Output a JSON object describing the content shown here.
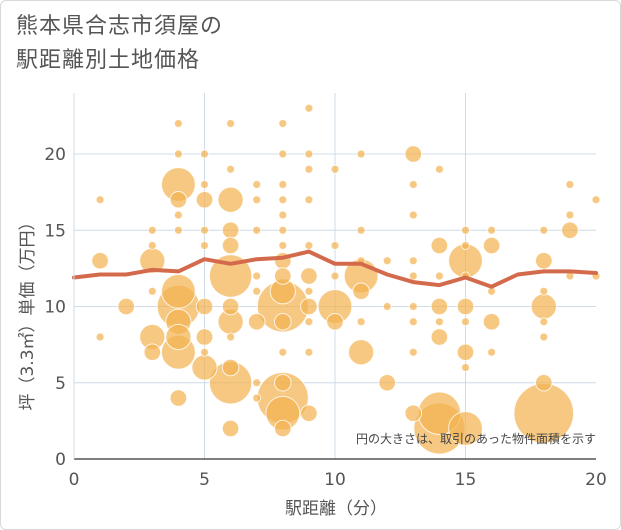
{
  "title_lines": [
    "熊本県合志市須屋の",
    "駅距離別土地価格"
  ],
  "chart_data": {
    "type": "scatter",
    "title": "熊本県合志市須屋の駅距離別土地価格",
    "xlabel": "駅距離（分）",
    "ylabel": "坪（3.3㎡）単価（万円）",
    "xlim": [
      0,
      20
    ],
    "ylim": [
      0,
      24
    ],
    "xticks": [
      0,
      5,
      10,
      15,
      20
    ],
    "yticks": [
      0,
      5,
      10,
      15,
      20
    ],
    "annotation": "円の大きさは、取引のあった物件面積を示す",
    "bubble_color": "#f2b352",
    "line_color": "#d46a4c",
    "points": [
      [
        1,
        17,
        1
      ],
      [
        1,
        13,
        2
      ],
      [
        1,
        8,
        1
      ],
      [
        2,
        10,
        2
      ],
      [
        3,
        15,
        1
      ],
      [
        3,
        14,
        1
      ],
      [
        3,
        13,
        3
      ],
      [
        3,
        11,
        1
      ],
      [
        3,
        8,
        3
      ],
      [
        3,
        7,
        2
      ],
      [
        4,
        22,
        1
      ],
      [
        4,
        20,
        1
      ],
      [
        4,
        18,
        4
      ],
      [
        4,
        17,
        2
      ],
      [
        4,
        16,
        1
      ],
      [
        4,
        15,
        1
      ],
      [
        4,
        11,
        4
      ],
      [
        4,
        10,
        5
      ],
      [
        4,
        9,
        3
      ],
      [
        4,
        8,
        3
      ],
      [
        4,
        7,
        4
      ],
      [
        4,
        4,
        2
      ],
      [
        5,
        20,
        1
      ],
      [
        5,
        18,
        1
      ],
      [
        5,
        17,
        2
      ],
      [
        5,
        15,
        1
      ],
      [
        5,
        14,
        1
      ],
      [
        5,
        10,
        2
      ],
      [
        5,
        8,
        2
      ],
      [
        5,
        7,
        1
      ],
      [
        5,
        6,
        3
      ],
      [
        6,
        22,
        1
      ],
      [
        6,
        19,
        1
      ],
      [
        6,
        17,
        3
      ],
      [
        6,
        15,
        2
      ],
      [
        6,
        14,
        2
      ],
      [
        6,
        12,
        5
      ],
      [
        6,
        10,
        2
      ],
      [
        6,
        9,
        3
      ],
      [
        6,
        8,
        1
      ],
      [
        6,
        6,
        2
      ],
      [
        6,
        5,
        5
      ],
      [
        6,
        2,
        2
      ],
      [
        7,
        18,
        1
      ],
      [
        7,
        17,
        1
      ],
      [
        7,
        15,
        1
      ],
      [
        7,
        12,
        1
      ],
      [
        7,
        11,
        1
      ],
      [
        7,
        9,
        2
      ],
      [
        7,
        5,
        1
      ],
      [
        7,
        4,
        1
      ],
      [
        8,
        22,
        1
      ],
      [
        8,
        20,
        1
      ],
      [
        8,
        18,
        1
      ],
      [
        8,
        17,
        1
      ],
      [
        8,
        16,
        1
      ],
      [
        8,
        15,
        1
      ],
      [
        8,
        14,
        1
      ],
      [
        8,
        13,
        2
      ],
      [
        8,
        12,
        2
      ],
      [
        8,
        11,
        3
      ],
      [
        8,
        10,
        6
      ],
      [
        8,
        9,
        2
      ],
      [
        8,
        7,
        1
      ],
      [
        8,
        5,
        2
      ],
      [
        8,
        4,
        6
      ],
      [
        8,
        3,
        4
      ],
      [
        8,
        2,
        2
      ],
      [
        9,
        23,
        1
      ],
      [
        9,
        20,
        1
      ],
      [
        9,
        19,
        1
      ],
      [
        9,
        17,
        1
      ],
      [
        9,
        14,
        1
      ],
      [
        9,
        12,
        2
      ],
      [
        9,
        11,
        1
      ],
      [
        9,
        10,
        2
      ],
      [
        9,
        9,
        1
      ],
      [
        9,
        7,
        1
      ],
      [
        9,
        3,
        2
      ],
      [
        10,
        19,
        1
      ],
      [
        10,
        14,
        1
      ],
      [
        10,
        12,
        1
      ],
      [
        10,
        10,
        4
      ],
      [
        10,
        9,
        2
      ],
      [
        11,
        20,
        1
      ],
      [
        11,
        15,
        1
      ],
      [
        11,
        13,
        1
      ],
      [
        11,
        12,
        4
      ],
      [
        11,
        11,
        2
      ],
      [
        11,
        9,
        1
      ],
      [
        11,
        7,
        3
      ],
      [
        12,
        13,
        1
      ],
      [
        12,
        10,
        1
      ],
      [
        12,
        5,
        2
      ],
      [
        13,
        20,
        2
      ],
      [
        13,
        18,
        1
      ],
      [
        13,
        16,
        1
      ],
      [
        13,
        13,
        1
      ],
      [
        13,
        12,
        1
      ],
      [
        13,
        10,
        1
      ],
      [
        13,
        9,
        1
      ],
      [
        13,
        7,
        1
      ],
      [
        13,
        3,
        2
      ],
      [
        14,
        19,
        1
      ],
      [
        14,
        14,
        2
      ],
      [
        14,
        12,
        1
      ],
      [
        14,
        10,
        2
      ],
      [
        14,
        9,
        1
      ],
      [
        14,
        8,
        2
      ],
      [
        14,
        3,
        5
      ],
      [
        14,
        2,
        6
      ],
      [
        15,
        15,
        1
      ],
      [
        15,
        14,
        1
      ],
      [
        15,
        13,
        4
      ],
      [
        15,
        12,
        1
      ],
      [
        15,
        10,
        2
      ],
      [
        15,
        9,
        1
      ],
      [
        15,
        7,
        2
      ],
      [
        15,
        6,
        1
      ],
      [
        15,
        2,
        4
      ],
      [
        16,
        15,
        1
      ],
      [
        16,
        14,
        2
      ],
      [
        16,
        11,
        1
      ],
      [
        16,
        9,
        2
      ],
      [
        16,
        7,
        1
      ],
      [
        18,
        15,
        1
      ],
      [
        18,
        13,
        2
      ],
      [
        18,
        11,
        1
      ],
      [
        18,
        10,
        3
      ],
      [
        18,
        9,
        1
      ],
      [
        18,
        8,
        1
      ],
      [
        18,
        5,
        2
      ],
      [
        18,
        3,
        7
      ],
      [
        19,
        18,
        1
      ],
      [
        19,
        16,
        1
      ],
      [
        19,
        15,
        2
      ],
      [
        19,
        12,
        1
      ],
      [
        20,
        17,
        1
      ],
      [
        20,
        12,
        1
      ]
    ],
    "trend": {
      "x": [
        0,
        1,
        2,
        3,
        4,
        5,
        6,
        7,
        8,
        9,
        10,
        11,
        12,
        13,
        14,
        15,
        16,
        17,
        18,
        19,
        20
      ],
      "y": [
        11.9,
        12.1,
        12.1,
        12.4,
        12.3,
        13.1,
        12.8,
        13.1,
        13.2,
        13.6,
        12.8,
        12.8,
        12.1,
        11.6,
        11.4,
        11.9,
        11.3,
        12.1,
        12.3,
        12.3,
        12.2
      ]
    }
  }
}
